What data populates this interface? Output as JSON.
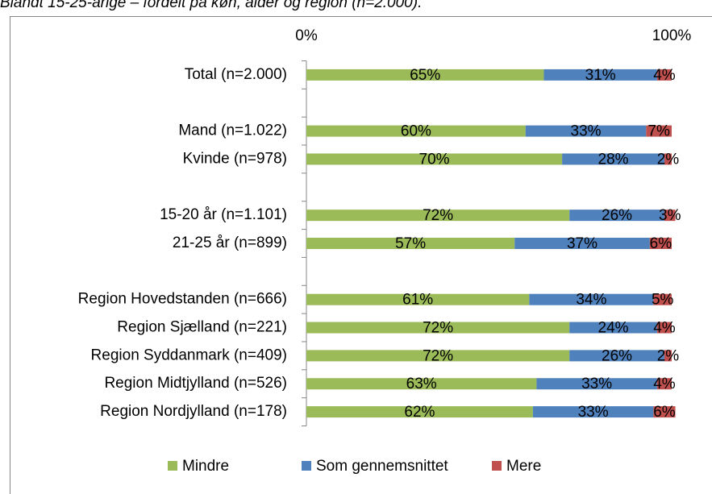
{
  "chart_data": {
    "type": "stacked_barh",
    "title": "Blandt 15-25-årige – fordelt på køn, alder og region (n=2.000).",
    "categories": [
      "Total (n=2.000)",
      null,
      "Mand (n=1.022)",
      "Kvinde (n=978)",
      null,
      "15-20 år (n=1.101)",
      "21-25 år (n=899)",
      null,
      "Region Hovedstanden (n=666)",
      "Region Sjælland (n=221)",
      "Region Syddanmark (n=409)",
      "Region Midtjylland (n=526)",
      "Region Nordjylland (n=178)"
    ],
    "series": [
      {
        "name": "Mindre",
        "color": "#9bbb59",
        "values": [
          65,
          null,
          60,
          70,
          null,
          72,
          57,
          null,
          61,
          72,
          72,
          63,
          62
        ],
        "value_labels": [
          "65%",
          null,
          "60%",
          "70%",
          null,
          "72%",
          "57%",
          null,
          "61%",
          "72%",
          "72%",
          "63%",
          "62%"
        ]
      },
      {
        "name": "Som gennemsnittet",
        "color": "#4f81bd",
        "values": [
          31,
          null,
          33,
          28,
          null,
          26,
          37,
          null,
          34,
          24,
          26,
          33,
          33
        ],
        "value_labels": [
          "31%",
          null,
          "33%",
          "28%",
          null,
          "26%",
          "37%",
          null,
          "34%",
          "24%",
          "26%",
          "33%",
          "33%"
        ]
      },
      {
        "name": "Mere",
        "color": "#c0504d",
        "values": [
          4,
          null,
          7,
          2,
          null,
          3,
          6,
          null,
          5,
          4,
          2,
          4,
          6
        ],
        "value_labels": [
          "4%",
          null,
          "7%",
          "2%",
          null,
          "3%",
          "6%",
          null,
          "5%",
          "4%",
          "2%",
          "4%",
          "6%"
        ]
      }
    ],
    "xlim": [
      0,
      100
    ],
    "xticks": [
      {
        "value": 0,
        "label": "0%"
      },
      {
        "value": 100,
        "label": "100%"
      }
    ],
    "legend": "bottom"
  }
}
